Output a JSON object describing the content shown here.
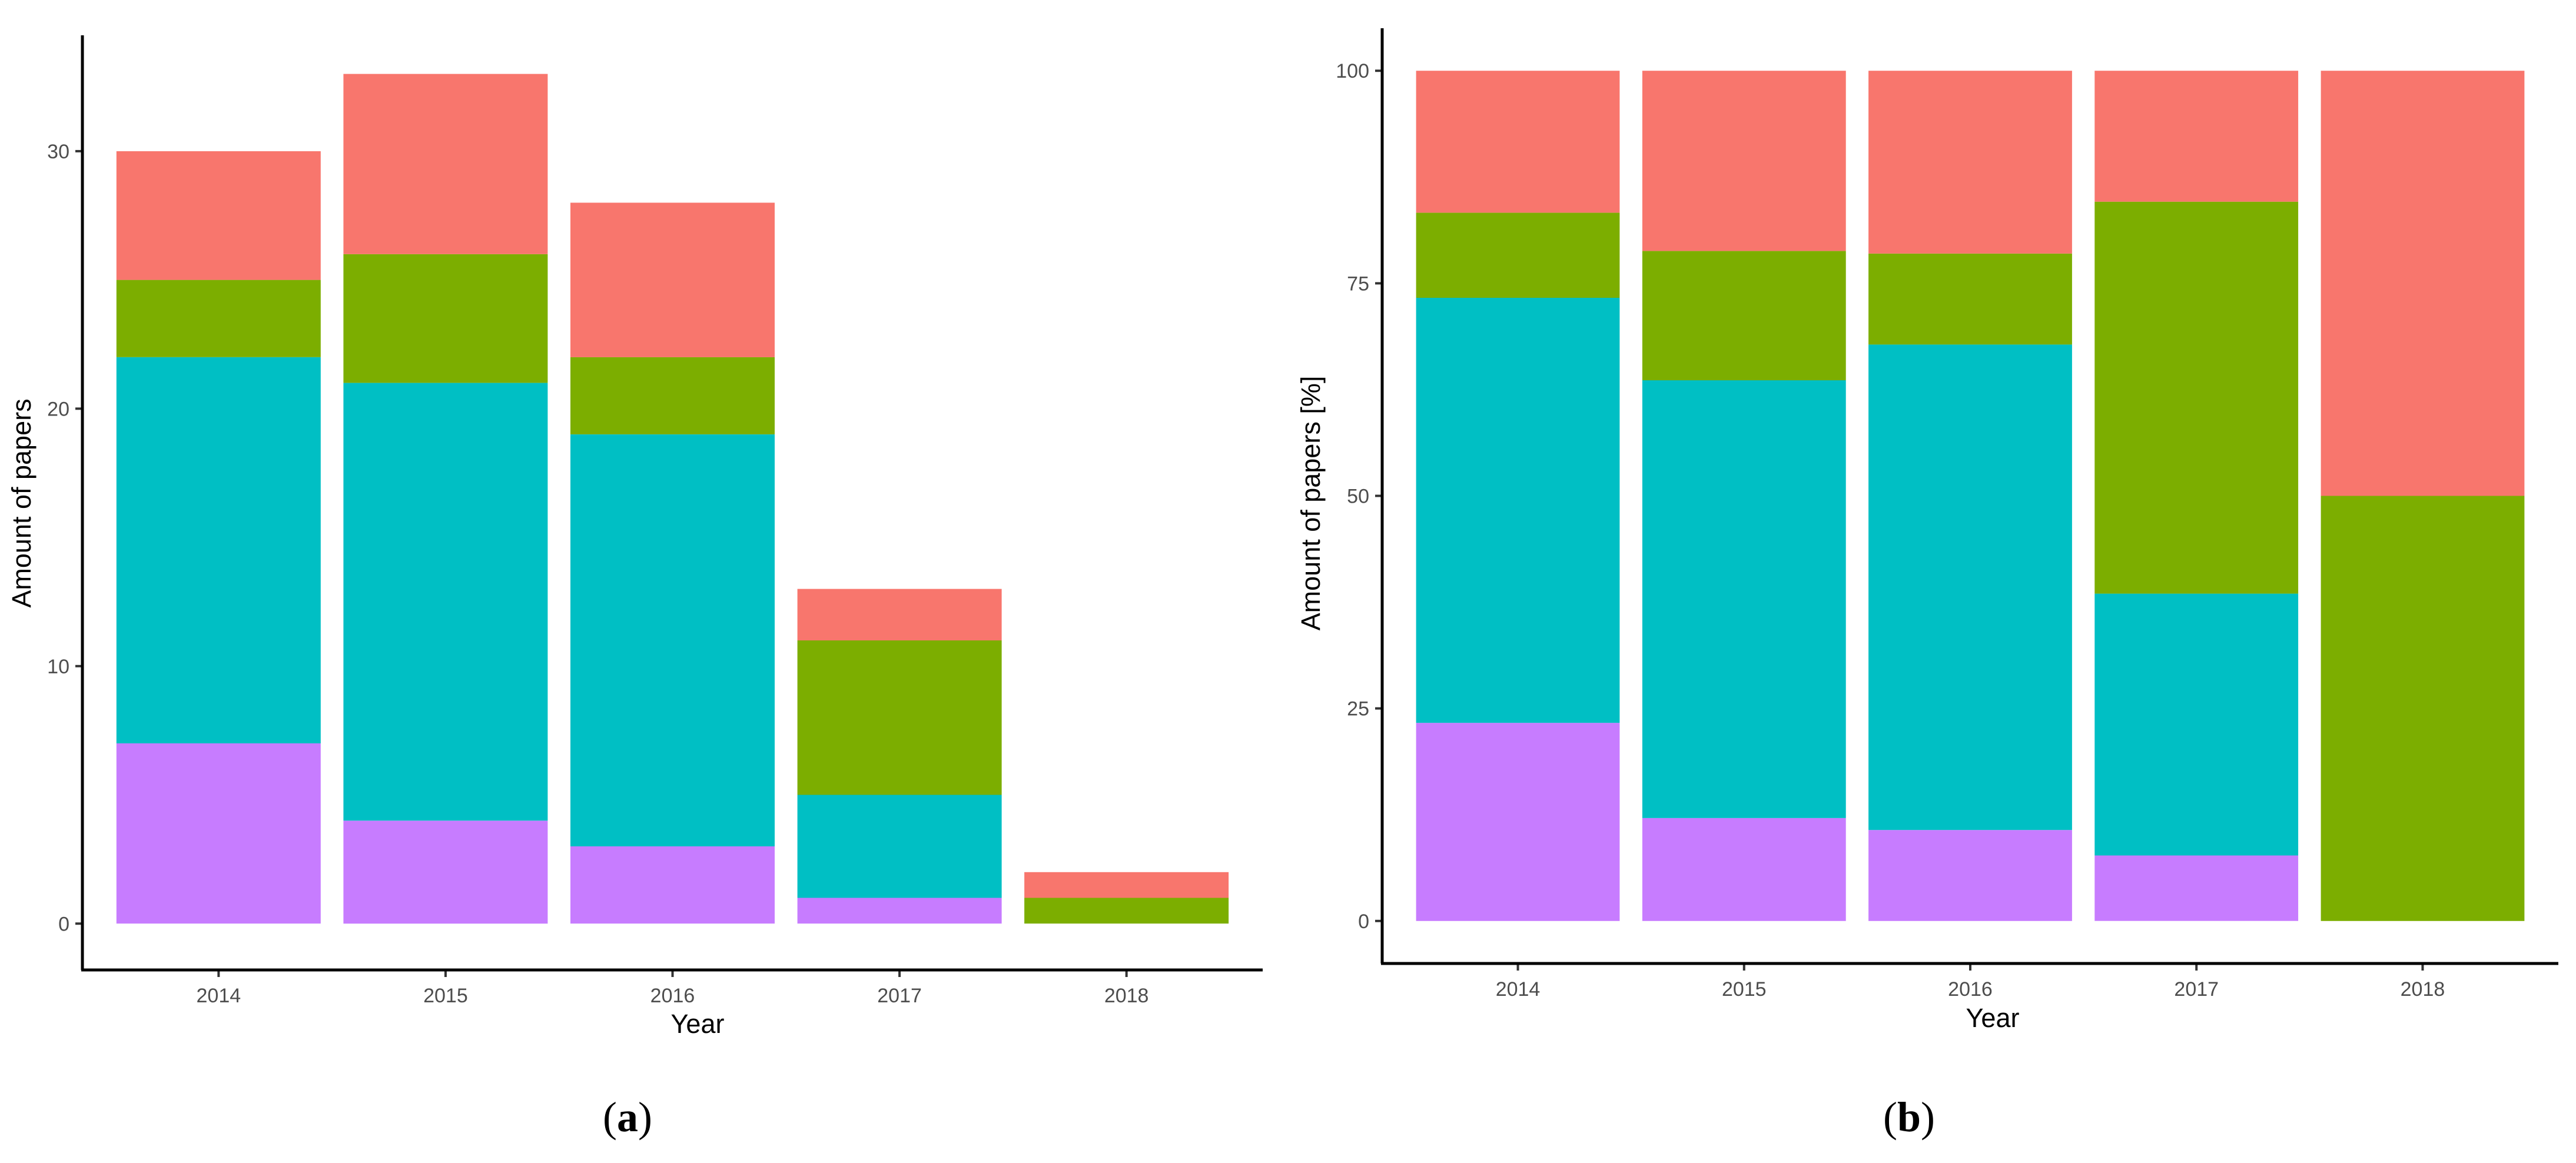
{
  "colors": {
    "red": "#F8766D",
    "green": "#7CAE00",
    "teal": "#00BFC4",
    "purple": "#C77CFF"
  },
  "chart_data": [
    {
      "id": "a",
      "type": "bar",
      "stacked": true,
      "panel_label": "a",
      "xlabel": "Year",
      "ylabel": "Amount of papers",
      "categories": [
        "2014",
        "2015",
        "2016",
        "2017",
        "2018"
      ],
      "ylim": [
        -1.8,
        34.5
      ],
      "yticks": [
        0,
        10,
        20,
        30
      ],
      "series": [
        {
          "name": "purple",
          "color": "#C77CFF",
          "values": [
            7,
            4,
            3,
            1,
            0
          ]
        },
        {
          "name": "teal",
          "color": "#00BFC4",
          "values": [
            15,
            17,
            16,
            4,
            0
          ]
        },
        {
          "name": "green",
          "color": "#7CAE00",
          "values": [
            3,
            5,
            3,
            6,
            1
          ]
        },
        {
          "name": "red",
          "color": "#F8766D",
          "values": [
            5,
            7,
            6,
            2,
            1
          ]
        }
      ]
    },
    {
      "id": "b",
      "type": "bar",
      "stacked": true,
      "panel_label": "b",
      "xlabel": "Year",
      "ylabel": "Amount of papers [%]",
      "categories": [
        "2014",
        "2015",
        "2016",
        "2017",
        "2018"
      ],
      "ylim": [
        -5,
        105
      ],
      "yticks": [
        0,
        25,
        50,
        75,
        100
      ],
      "series": [
        {
          "name": "purple",
          "color": "#C77CFF",
          "values": [
            23.3,
            12.1,
            10.7,
            7.7,
            0
          ]
        },
        {
          "name": "teal",
          "color": "#00BFC4",
          "values": [
            50.0,
            51.5,
            57.1,
            30.8,
            0
          ]
        },
        {
          "name": "green",
          "color": "#7CAE00",
          "values": [
            10.0,
            15.2,
            10.7,
            46.1,
            50
          ]
        },
        {
          "name": "red",
          "color": "#F8766D",
          "values": [
            16.7,
            21.2,
            21.5,
            15.4,
            50
          ]
        }
      ]
    }
  ]
}
